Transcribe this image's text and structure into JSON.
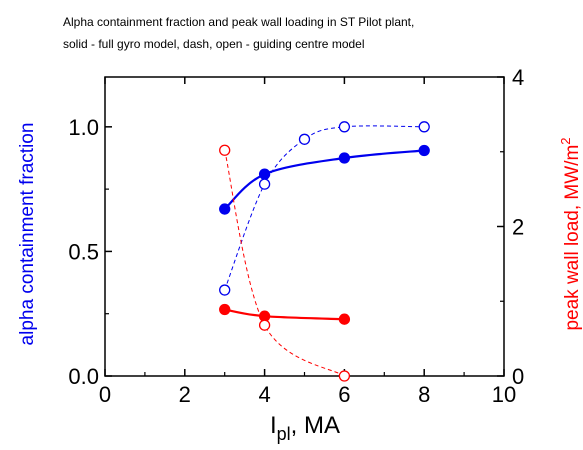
{
  "chart_data": {
    "type": "scatter",
    "title": "Alpha containment fraction and peak wall loading in ST Pilot plant,",
    "subtitle": "solid - full gyro model, dash, open - guiding centre model",
    "xlabel": "I",
    "xlabel_sub": "pl",
    "xlabel_unit": ", MA",
    "ylabel_left": "alpha containment fraction",
    "ylabel_right": "peak wall load, MW/m",
    "ylabel_right_sup": "2",
    "xlim": [
      0,
      10
    ],
    "ylim_left": [
      0,
      1.2
    ],
    "ylim_right": [
      0,
      4
    ],
    "x_ticks": [
      "0",
      "2",
      "4",
      "6",
      "8",
      "10"
    ],
    "y_ticks_left": [
      "0.0",
      "0.5",
      "1.0"
    ],
    "y_ticks_right": [
      "0",
      "2",
      "4"
    ],
    "grid": false,
    "legend": "none",
    "colors": {
      "blue": "#0000ee",
      "red": "#ff0000"
    },
    "series": [
      {
        "axis": "left",
        "color": "#0000ee",
        "marker": "filled-circle",
        "line": "solid",
        "x": [
          3,
          4,
          6,
          8
        ],
        "y": [
          0.67,
          0.81,
          0.875,
          0.905
        ]
      },
      {
        "axis": "left",
        "color": "#0000ee",
        "marker": "open-circle",
        "line": "dashed",
        "x": [
          3,
          4,
          5,
          6,
          8
        ],
        "y": [
          0.345,
          0.77,
          0.95,
          1.0,
          1.0
        ]
      },
      {
        "axis": "right",
        "color": "#ff0000",
        "marker": "filled-circle",
        "line": "solid",
        "x": [
          3,
          4,
          6
        ],
        "y": [
          0.89,
          0.8,
          0.76
        ]
      },
      {
        "axis": "right",
        "color": "#ff0000",
        "marker": "open-circle",
        "line": "dashed",
        "x": [
          3,
          4,
          6
        ],
        "y": [
          3.02,
          0.68,
          0.0
        ]
      }
    ]
  }
}
